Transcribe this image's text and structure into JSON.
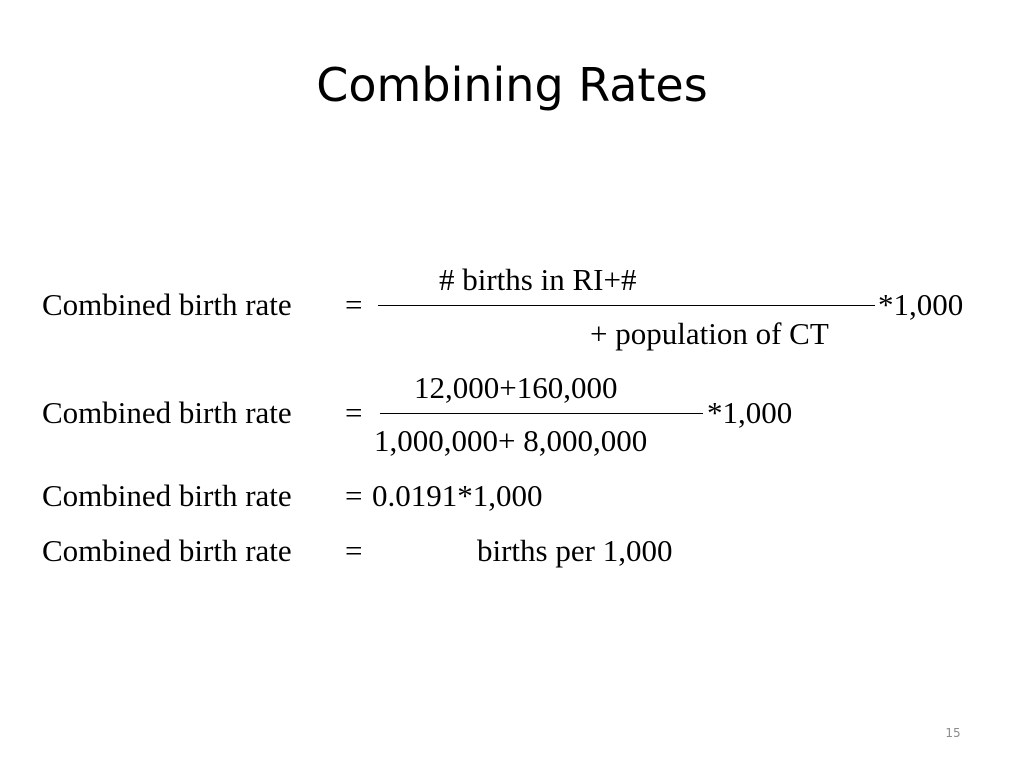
{
  "slide": {
    "title": "Combining Rates",
    "page_number": "15"
  },
  "equations": [
    {
      "lhs": "Combined birth rate",
      "equals": "=",
      "numerator": "# births in RI+#",
      "denominator": "+ population of CT",
      "multiplier": "*1,000"
    },
    {
      "lhs": "Combined birth rate",
      "equals": "=",
      "numerator": "12,000+160,000",
      "denominator": "1,000,000+ 8,000,000",
      "multiplier": "*1,000"
    },
    {
      "lhs": "Combined birth rate",
      "equals": "=",
      "rhs": "0.0191*1,000"
    },
    {
      "lhs": "Combined birth rate",
      "equals": "=",
      "rhs": "births per 1,000"
    }
  ]
}
